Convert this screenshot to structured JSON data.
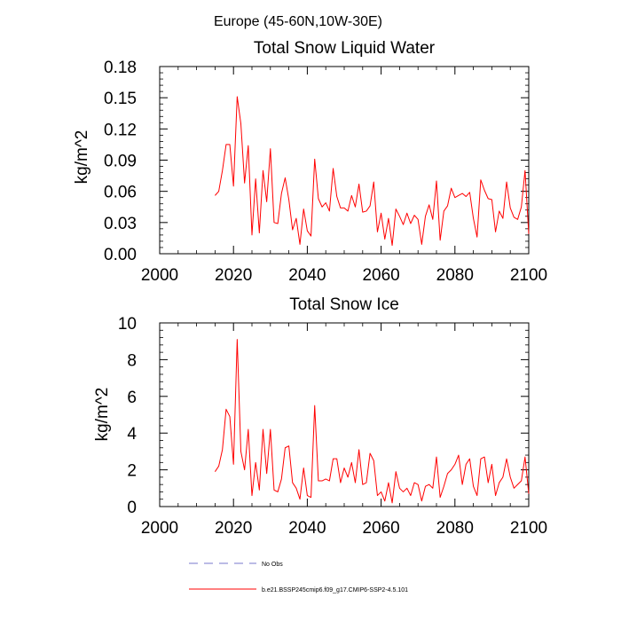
{
  "figure": {
    "main_title": "Europe (45-60N,10W-30E)"
  },
  "chart_data": [
    {
      "type": "line",
      "title": "Total Snow Liquid Water",
      "xlabel": "",
      "ylabel": "kg/m^2",
      "xlim": [
        2000,
        2100
      ],
      "ylim": [
        0,
        0.18
      ],
      "x_ticks": [
        2000,
        2020,
        2040,
        2060,
        2080,
        2100
      ],
      "y_ticks": [
        0.0,
        0.03,
        0.06,
        0.09,
        0.12,
        0.15,
        0.18
      ],
      "y_tick_labels": [
        "0.00",
        "0.03",
        "0.06",
        "0.09",
        "0.12",
        "0.15",
        "0.18"
      ],
      "series": [
        {
          "name": "b.e21.BSSP245cmip6.f09_g17.CMIP6-SSP2-4.5.101",
          "color": "#ff0000",
          "x_start": 2015,
          "values": [
            0.056,
            0.06,
            0.08,
            0.105,
            0.105,
            0.065,
            0.151,
            0.125,
            0.068,
            0.104,
            0.018,
            0.072,
            0.02,
            0.08,
            0.05,
            0.101,
            0.03,
            0.029,
            0.058,
            0.073,
            0.052,
            0.023,
            0.034,
            0.009,
            0.043,
            0.022,
            0.017,
            0.091,
            0.053,
            0.045,
            0.049,
            0.041,
            0.082,
            0.055,
            0.044,
            0.044,
            0.041,
            0.056,
            0.045,
            0.067,
            0.04,
            0.041,
            0.046,
            0.069,
            0.021,
            0.039,
            0.014,
            0.034,
            0.008,
            0.043,
            0.036,
            0.028,
            0.039,
            0.029,
            0.037,
            0.033,
            0.009,
            0.036,
            0.047,
            0.033,
            0.07,
            0.013,
            0.041,
            0.046,
            0.063,
            0.054,
            0.056,
            0.058,
            0.055,
            0.059,
            0.034,
            0.016,
            0.071,
            0.061,
            0.053,
            0.052,
            0.021,
            0.041,
            0.034,
            0.069,
            0.044,
            0.035,
            0.033,
            0.045,
            0.08,
            0.019
          ]
        }
      ]
    },
    {
      "type": "line",
      "title": "Total Snow Ice",
      "xlabel": "",
      "ylabel": "kg/m^2",
      "xlim": [
        2000,
        2100
      ],
      "ylim": [
        0,
        10
      ],
      "x_ticks": [
        2000,
        2020,
        2040,
        2060,
        2080,
        2100
      ],
      "y_ticks": [
        0,
        2,
        4,
        6,
        8,
        10
      ],
      "y_tick_labels": [
        "0",
        "2",
        "4",
        "6",
        "8",
        "10"
      ],
      "series": [
        {
          "name": "b.e21.BSSP245cmip6.f09_g17.CMIP6-SSP2-4.5.101",
          "color": "#ff0000",
          "x_start": 2015,
          "values": [
            1.9,
            2.2,
            3.1,
            5.3,
            4.9,
            2.3,
            9.1,
            3.0,
            2.0,
            4.2,
            0.6,
            2.4,
            0.9,
            4.2,
            1.8,
            4.2,
            0.9,
            0.8,
            1.5,
            3.2,
            3.3,
            1.3,
            1.0,
            0.4,
            2.1,
            0.6,
            0.5,
            5.5,
            1.4,
            1.4,
            1.5,
            1.4,
            2.6,
            2.6,
            1.3,
            2.1,
            1.6,
            2.4,
            1.3,
            3.1,
            1.2,
            1.3,
            2.9,
            2.5,
            0.6,
            0.8,
            0.3,
            1.3,
            0.2,
            1.9,
            1.0,
            0.8,
            1.0,
            0.6,
            1.3,
            1.2,
            0.3,
            1.1,
            1.2,
            1.0,
            2.7,
            0.5,
            1.1,
            1.8,
            2.0,
            2.3,
            2.8,
            1.2,
            2.3,
            2.6,
            1.1,
            0.6,
            2.6,
            2.7,
            1.3,
            2.3,
            0.6,
            1.3,
            1.6,
            2.6,
            1.6,
            1.0,
            1.2,
            1.4,
            2.7,
            0.7
          ]
        }
      ]
    }
  ],
  "legend": [
    {
      "label": "No Obs",
      "color": "#7777cc",
      "style": "dashed"
    },
    {
      "label": "b.e21.BSSP245cmip6.f09_g17.CMIP6-SSP2-4.5.101",
      "color": "#ff0000",
      "style": "solid"
    }
  ]
}
